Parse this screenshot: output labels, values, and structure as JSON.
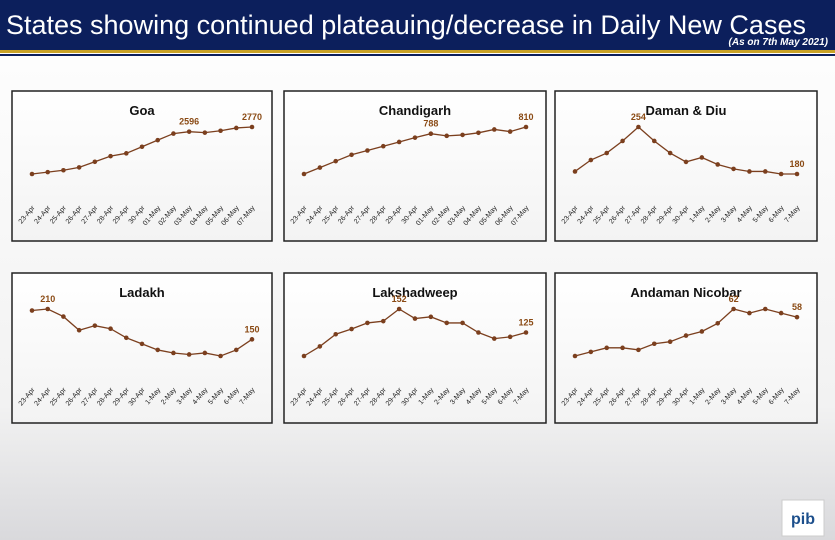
{
  "header": {
    "title": "States showing continued plateauing/decrease in Daily New Cases",
    "subtitle": "(As on 7th May 2021)"
  },
  "logo_text": "pib",
  "chart_data": [
    {
      "type": "line",
      "title": "Goa",
      "color": "#7b3f1e",
      "categories": [
        "23-Apr",
        "24-Apr",
        "25-Apr",
        "26-Apr",
        "27-Apr",
        "28-Apr",
        "29-Apr",
        "30-Apr",
        "01-May",
        "02-May",
        "03-May",
        "04-May",
        "05-May",
        "06-May",
        "07-May"
      ],
      "values": [
        1020,
        1090,
        1160,
        1265,
        1475,
        1685,
        1790,
        2035,
        2280,
        2525,
        2596,
        2560,
        2630,
        2735,
        2770
      ],
      "value_labels": [
        null,
        null,
        null,
        null,
        null,
        null,
        null,
        null,
        null,
        null,
        "2596",
        null,
        null,
        null,
        "2770"
      ]
    },
    {
      "type": "line",
      "title": "Chandigarh",
      "color": "#7b3f1e",
      "categories": [
        "23-Apr",
        "24-Apr",
        "25-Apr",
        "26-Apr",
        "27-Apr",
        "28-Apr",
        "29-Apr",
        "30-Apr",
        "01-May",
        "02-May",
        "03-May",
        "04-May",
        "05-May",
        "06-May",
        "07-May"
      ],
      "values": [
        656,
        677,
        698,
        719,
        733,
        747,
        761,
        775,
        788,
        781,
        784,
        791,
        802,
        795,
        810
      ],
      "value_labels": [
        null,
        null,
        null,
        null,
        null,
        null,
        null,
        null,
        "788",
        null,
        null,
        null,
        null,
        null,
        "810"
      ]
    },
    {
      "type": "line",
      "title": "Daman & Diu",
      "color": "#7b3f1e",
      "categories": [
        "23-Apr",
        "24-Apr",
        "25-Apr",
        "26-Apr",
        "27-Apr",
        "28-Apr",
        "29-Apr",
        "30-Apr",
        "1-May",
        "2-May",
        "3-May",
        "4-May",
        "5-May",
        "6-May",
        "7-May"
      ],
      "values": [
        184,
        202,
        213,
        232,
        254,
        232,
        213,
        199,
        206,
        195,
        188,
        184,
        184,
        180,
        180
      ],
      "value_labels": [
        null,
        null,
        null,
        null,
        "254",
        null,
        null,
        null,
        null,
        null,
        null,
        null,
        null,
        null,
        "180"
      ]
    },
    {
      "type": "line",
      "title": "Ladakh",
      "color": "#7b3f1e",
      "categories": [
        "23-Apr",
        "24-Apr",
        "25-Apr",
        "26-Apr",
        "27-Apr",
        "28-Apr",
        "29-Apr",
        "30-Apr",
        "1-May",
        "2-May",
        "3-May",
        "4-May",
        "5-May",
        "6-May",
        "7-May"
      ],
      "values": [
        207,
        210,
        195,
        168,
        177,
        171,
        153,
        141,
        129,
        123,
        120,
        123,
        117,
        129,
        150
      ],
      "value_labels": [
        null,
        "210",
        null,
        null,
        null,
        null,
        null,
        null,
        null,
        null,
        null,
        null,
        null,
        null,
        "150"
      ]
    },
    {
      "type": "line",
      "title": "Lakshadweep",
      "color": "#7b3f1e",
      "categories": [
        "23-Apr",
        "24-Apr",
        "25-Apr",
        "26-Apr",
        "27-Apr",
        "28-Apr",
        "29-Apr",
        "30-Apr",
        "1-May",
        "2-May",
        "3-May",
        "4-May",
        "5-May",
        "6-May",
        "7-May"
      ],
      "values": [
        98,
        109,
        123,
        129,
        136,
        138,
        152,
        141,
        143,
        136,
        136,
        125,
        118,
        120,
        125
      ],
      "value_labels": [
        null,
        null,
        null,
        null,
        null,
        null,
        "152",
        null,
        null,
        null,
        null,
        null,
        null,
        null,
        "125"
      ]
    },
    {
      "type": "line",
      "title": "Andaman Nicobar",
      "color": "#7b3f1e",
      "categories": [
        "23-Apr",
        "24-Apr",
        "25-Apr",
        "26-Apr",
        "27-Apr",
        "28-Apr",
        "29-Apr",
        "30-Apr",
        "1-May",
        "2-May",
        "3-May",
        "4-May",
        "5-May",
        "6-May",
        "7-May"
      ],
      "values": [
        39,
        41,
        43,
        43,
        42,
        45,
        46,
        49,
        51,
        55,
        62,
        60,
        62,
        60,
        58
      ],
      "value_labels": [
        null,
        null,
        null,
        null,
        null,
        null,
        null,
        null,
        null,
        null,
        "62",
        null,
        null,
        null,
        "58"
      ]
    }
  ]
}
